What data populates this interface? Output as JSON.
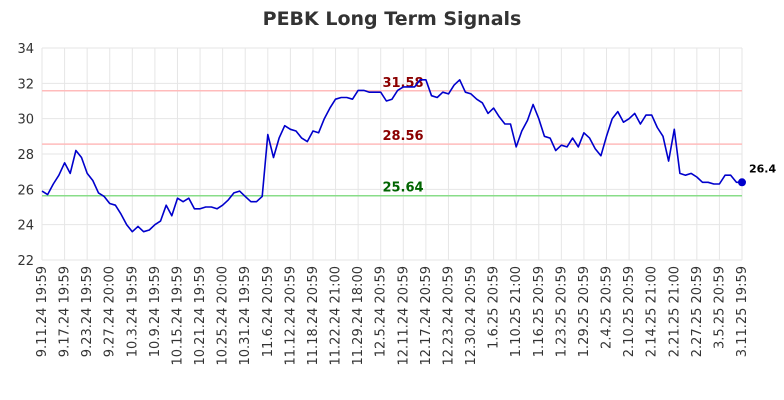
{
  "chart_data": {
    "type": "line",
    "title": "PEBK Long Term Signals",
    "ylim": [
      22,
      34
    ],
    "yticks": [
      22,
      24,
      26,
      28,
      30,
      32,
      34
    ],
    "grid": true,
    "x_tick_labels": [
      "9.11.24 19:59",
      "9.17.24 19:59",
      "9.23.24 19:59",
      "9.27.24 20:00",
      "10.3.24 19:59",
      "10.9.24 19:59",
      "10.15.24 19:59",
      "10.21.24 19:59",
      "10.25.24 20:00",
      "10.31.24 19:59",
      "11.6.24 20:59",
      "11.12.24 20:59",
      "11.18.24 20:59",
      "11.22.24 21:00",
      "11.29.24 18:00",
      "12.5.24 20:59",
      "12.11.24 20:59",
      "12.17.24 20:59",
      "12.23.24 20:59",
      "12.30.24 20:59",
      "1.6.25 20:59",
      "1.10.25 21:00",
      "1.16.25 20:59",
      "1.23.25 20:59",
      "1.29.25 20:59",
      "2.4.25 20:59",
      "2.10.25 20:59",
      "2.14.25 21:00",
      "2.21.25 21:00",
      "2.27.25 20:59",
      "3.5.25 20:59",
      "3.11.25 19:59"
    ],
    "series": [
      {
        "color": "#0000cc",
        "values": [
          25.9,
          25.7,
          26.3,
          26.8,
          27.5,
          26.9,
          28.2,
          27.8,
          26.9,
          26.5,
          25.8,
          25.6,
          25.2,
          25.1,
          24.6,
          24.0,
          23.6,
          23.9,
          23.6,
          23.7,
          24.0,
          24.2,
          25.1,
          24.5,
          25.5,
          25.3,
          25.5,
          24.9,
          24.9,
          25.0,
          25.0,
          24.9,
          25.1,
          25.4,
          25.8,
          25.9,
          25.6,
          25.3,
          25.3,
          25.6,
          29.1,
          27.8,
          28.9,
          29.6,
          29.4,
          29.3,
          28.9,
          28.7,
          29.3,
          29.2,
          30.0,
          30.6,
          31.1,
          31.2,
          31.2,
          31.1,
          31.6,
          31.6,
          31.5,
          31.5,
          31.5,
          31.0,
          31.1,
          31.6,
          31.8,
          31.8,
          31.8,
          32.2,
          32.2,
          31.3,
          31.2,
          31.5,
          31.4,
          31.9,
          32.2,
          31.5,
          31.4,
          31.1,
          30.9,
          30.3,
          30.6,
          30.1,
          29.7,
          29.7,
          28.4,
          29.3,
          29.9,
          30.8,
          30.0,
          29.0,
          28.9,
          28.2,
          28.5,
          28.4,
          28.9,
          28.4,
          29.2,
          28.9,
          28.3,
          27.9,
          29.0,
          30.0,
          30.4,
          29.8,
          30.0,
          30.3,
          29.7,
          30.2,
          30.2,
          29.5,
          29.0,
          27.6,
          29.4,
          26.9,
          26.8,
          26.9,
          26.7,
          26.4,
          26.4,
          26.3,
          26.3,
          26.8,
          26.8,
          26.4,
          26.4
        ]
      }
    ],
    "hlines": [
      {
        "value": 31.58,
        "label": "31.58",
        "line_color": "#ffbbbb",
        "label_color": "#8b0000"
      },
      {
        "value": 28.56,
        "label": "28.56",
        "line_color": "#ffbbbb",
        "label_color": "#8b0000"
      },
      {
        "value": 25.64,
        "label": "25.64",
        "line_color": "#88dd88",
        "label_color": "#006400"
      }
    ],
    "last_value_label": "26.4"
  }
}
